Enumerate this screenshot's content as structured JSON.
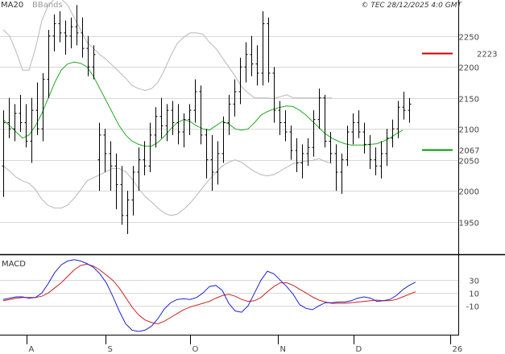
{
  "chart_data": [
    {
      "type": "ohlc",
      "legend": [
        "MA20",
        "BBands"
      ],
      "credit": "© TEC 28/12/2025 4:0 GMT",
      "yticks": [
        1950,
        2000,
        2050,
        2100,
        2150,
        2200,
        2250
      ],
      "ylim": [
        1900,
        2290
      ],
      "xticks": [
        "A",
        "S",
        "O",
        "N",
        "D",
        "26"
      ],
      "grid": true,
      "levels": [
        {
          "label": "2223",
          "value": 2223,
          "color": "#cc0000"
        },
        {
          "label": "2067",
          "value": 2067,
          "color": "#009900"
        }
      ],
      "bars": [
        [
          2040,
          2130,
          1990,
          2110
        ],
        [
          2110,
          2150,
          2085,
          2100
        ],
        [
          2100,
          2140,
          2080,
          2125
        ],
        [
          2125,
          2155,
          2095,
          2110
        ],
        [
          2110,
          2140,
          2070,
          2080
        ],
        [
          2080,
          2150,
          2045,
          2130
        ],
        [
          2130,
          2175,
          2090,
          2100
        ],
        [
          2100,
          2190,
          2080,
          2180
        ],
        [
          2180,
          2260,
          2150,
          2250
        ],
        [
          2250,
          2285,
          2225,
          2270
        ],
        [
          2270,
          2290,
          2240,
          2255
        ],
        [
          2255,
          2275,
          2220,
          2250
        ],
        [
          2250,
          2280,
          2230,
          2265
        ],
        [
          2265,
          2300,
          2235,
          2255
        ],
        [
          2255,
          2280,
          2215,
          2230
        ],
        [
          2230,
          2250,
          2185,
          2200
        ],
        [
          2200,
          2235,
          2180,
          2220
        ],
        [
          2050,
          2110,
          2000,
          2090
        ],
        [
          2090,
          2100,
          2030,
          2060
        ],
        [
          2060,
          2080,
          2000,
          2040
        ],
        [
          2040,
          2060,
          1970,
          2010
        ],
        [
          2010,
          2040,
          1945,
          1960
        ],
        [
          1960,
          2000,
          1930,
          1985
        ],
        [
          1985,
          2040,
          1960,
          2030
        ],
        [
          2030,
          2070,
          2000,
          2050
        ],
        [
          2050,
          2080,
          2025,
          2040
        ],
        [
          2040,
          2110,
          2030,
          2090
        ],
        [
          2090,
          2135,
          2070,
          2120
        ],
        [
          2120,
          2150,
          2085,
          2105
        ],
        [
          2105,
          2140,
          2080,
          2130
        ],
        [
          2130,
          2145,
          2090,
          2110
        ],
        [
          2110,
          2140,
          2075,
          2095
        ],
        [
          2095,
          2125,
          2070,
          2115
        ],
        [
          2115,
          2140,
          2090,
          2130
        ],
        [
          2130,
          2180,
          2110,
          2160
        ],
        [
          2160,
          2170,
          2075,
          2090
        ],
        [
          2090,
          2100,
          2020,
          2050
        ],
        [
          2050,
          2090,
          2000,
          2030
        ],
        [
          2030,
          2080,
          2010,
          2060
        ],
        [
          2060,
          2120,
          2045,
          2110
        ],
        [
          2110,
          2155,
          2090,
          2140
        ],
        [
          2140,
          2180,
          2120,
          2160
        ],
        [
          2160,
          2215,
          2140,
          2200
        ],
        [
          2200,
          2240,
          2175,
          2220
        ],
        [
          2220,
          2250,
          2185,
          2205
        ],
        [
          2205,
          2235,
          2170,
          2190
        ],
        [
          2190,
          2290,
          2170,
          2270
        ],
        [
          2270,
          2280,
          2175,
          2190
        ],
        [
          2190,
          2200,
          2110,
          2130
        ],
        [
          2130,
          2145,
          2090,
          2110
        ],
        [
          2110,
          2130,
          2080,
          2095
        ],
        [
          2095,
          2105,
          2050,
          2065
        ],
        [
          2065,
          2085,
          2030,
          2045
        ],
        [
          2045,
          2075,
          2020,
          2060
        ],
        [
          2060,
          2085,
          2040,
          2070
        ],
        [
          2070,
          2130,
          2055,
          2115
        ],
        [
          2115,
          2165,
          2100,
          2150
        ],
        [
          2150,
          2155,
          2070,
          2080
        ],
        [
          2080,
          2095,
          2045,
          2060
        ],
        [
          2060,
          2075,
          2000,
          2030
        ],
        [
          2030,
          2060,
          1995,
          2050
        ],
        [
          2050,
          2105,
          2040,
          2095
        ],
        [
          2095,
          2125,
          2075,
          2110
        ],
        [
          2110,
          2130,
          2085,
          2095
        ],
        [
          2095,
          2110,
          2060,
          2075
        ],
        [
          2075,
          2090,
          2035,
          2050
        ],
        [
          2050,
          2070,
          2025,
          2040
        ],
        [
          2040,
          2080,
          2020,
          2060
        ],
        [
          2060,
          2100,
          2040,
          2085
        ],
        [
          2085,
          2115,
          2070,
          2100
        ],
        [
          2100,
          2145,
          2085,
          2135
        ],
        [
          2135,
          2160,
          2115,
          2130
        ],
        [
          2130,
          2150,
          2110,
          2140
        ]
      ],
      "ma20": [
        2115,
        2105,
        2095,
        2085,
        2090,
        2105,
        2125,
        2150,
        2175,
        2195,
        2205,
        2208,
        2206,
        2200,
        2185,
        2165,
        2145,
        2125,
        2105,
        2090,
        2080,
        2075,
        2072,
        2072,
        2078,
        2088,
        2100,
        2110,
        2115,
        2112,
        2105,
        2100,
        2098,
        2105,
        2112,
        2108,
        2100,
        2098,
        2100,
        2110,
        2122,
        2128,
        2132,
        2135,
        2137,
        2136,
        2130,
        2122,
        2112,
        2102,
        2092,
        2085,
        2080,
        2076,
        2074,
        2074,
        2074,
        2075,
        2076,
        2080,
        2085,
        2092,
        2098
      ],
      "bb_upper": [
        2260,
        2250,
        2225,
        2195,
        2195,
        2230,
        2275,
        2300,
        2310,
        2310,
        2300,
        2280,
        2260,
        2240,
        2230,
        2220,
        2212,
        2202,
        2192,
        2182,
        2170,
        2165,
        2162,
        2165,
        2175,
        2195,
        2218,
        2238,
        2248,
        2255,
        2255,
        2253,
        2240,
        2230,
        2215,
        2200,
        2185,
        2168,
        2158,
        2150,
        2150,
        2150,
        2149,
        2152,
        2155,
        2150,
        2150,
        2150,
        2150,
        2150,
        2150,
        2150
      ],
      "bb_lower": [
        2040,
        2032,
        2022,
        2016,
        2012,
        2002,
        1986,
        1976,
        1972,
        1972,
        1977,
        1988,
        2001,
        2016,
        2021,
        2026,
        2031,
        2036,
        2036,
        2031,
        2019,
        2004,
        1991,
        1982,
        1972,
        1964,
        1960,
        1962,
        1970,
        1980,
        1992,
        2006,
        2018,
        2030,
        2040,
        2046,
        2050,
        2046,
        2038,
        2031,
        2026,
        2024,
        2026,
        2032,
        2038,
        2044,
        2046,
        2048,
        2049,
        2052,
        2047,
        2044
      ],
      "macd": {
        "label": "MACD",
        "yticks": [
          {
            "label": "30",
            "value": 30
          },
          {
            "label": "10",
            "value": 10
          },
          {
            "label": "-10",
            "value": -10
          }
        ],
        "ylim": [
          -55,
          68
        ],
        "macd": [
          0,
          2,
          4,
          4,
          2,
          3,
          10,
          25,
          42,
          54,
          60,
          62,
          60,
          56,
          50,
          40,
          26,
          5,
          -18,
          -38,
          -48,
          -50,
          -48,
          -42,
          -30,
          -15,
          -5,
          0,
          1,
          0,
          3,
          10,
          20,
          22,
          14,
          -6,
          -18,
          -20,
          -10,
          10,
          30,
          44,
          40,
          30,
          20,
          8,
          -8,
          -14,
          -16,
          -10,
          -5,
          -5,
          -4,
          -4,
          -2,
          2,
          4,
          2,
          -3,
          -2,
          0,
          6,
          15,
          22,
          27
        ],
        "signal": [
          -2,
          0,
          2,
          3,
          3,
          3,
          5,
          10,
          18,
          26,
          36,
          46,
          53,
          55,
          52,
          46,
          38,
          30,
          18,
          3,
          -12,
          -24,
          -32,
          -36,
          -38,
          -34,
          -28,
          -22,
          -16,
          -12,
          -9,
          -6,
          -3,
          2,
          6,
          8,
          5,
          0,
          -3,
          -2,
          3,
          12,
          20,
          26,
          26,
          22,
          16,
          10,
          4,
          -1,
          -4,
          -6,
          -6,
          -6,
          -5,
          -4,
          -3,
          -2,
          -1,
          -2,
          -2,
          0,
          4,
          8,
          12
        ]
      }
    }
  ],
  "colors": {
    "ohlc": "#000000",
    "ma20": "#22aa22",
    "bbands": "#b8b8b8",
    "macd": "#2222cc",
    "signal": "#cc2222",
    "grid": "#d8d8d8",
    "axis": "#000000"
  }
}
